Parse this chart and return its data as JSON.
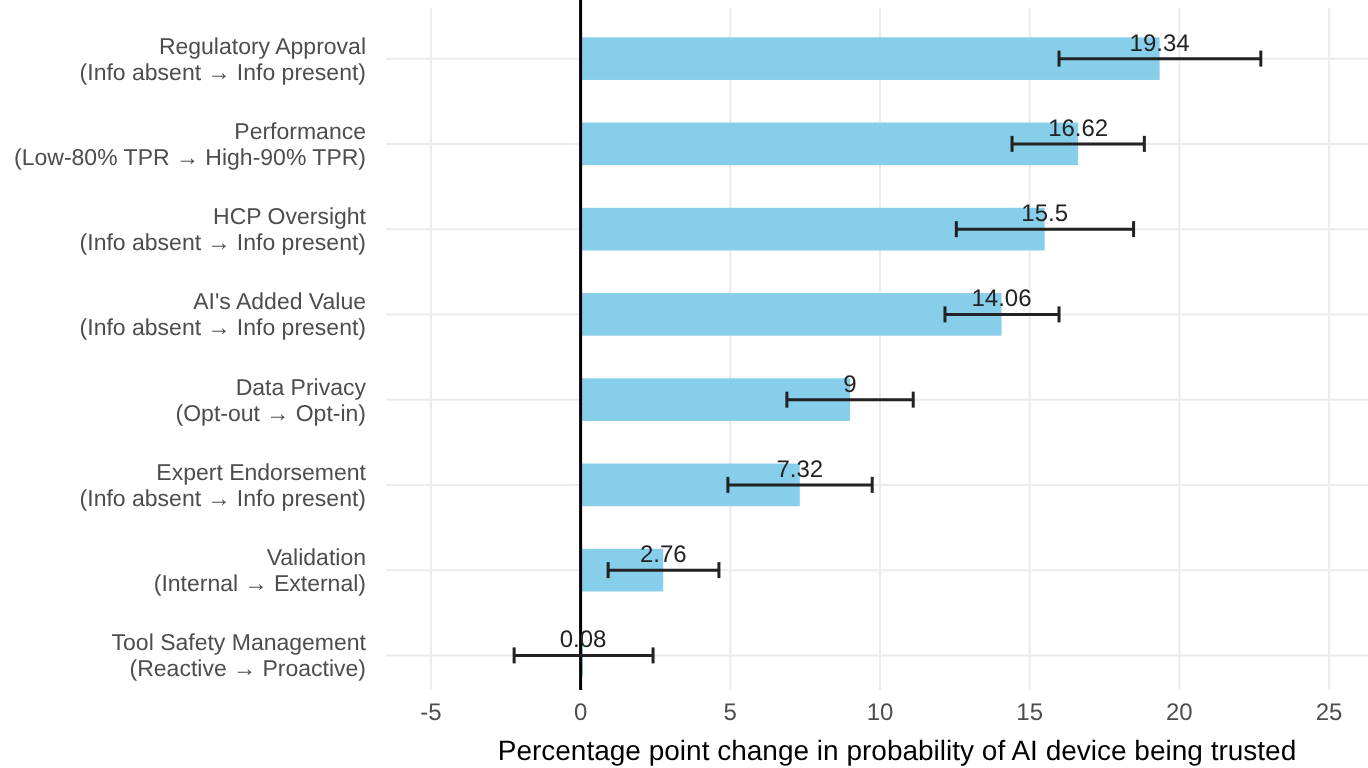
{
  "chart_data": {
    "type": "bar",
    "orientation": "horizontal",
    "xlabel": "Percentage point change in probability of AI device being trusted",
    "categories": [
      "Regulatory Approval\n(Info absent → Info present)",
      "Performance\n(Low-80% TPR → High-90% TPR)",
      "HCP Oversight\n(Info absent → Info present)",
      "AI's Added Value\n(Info absent → Info present)",
      "Data Privacy\n(Opt-out → Opt-in)",
      "Expert Endorsement\n(Info absent → Info present)",
      "Validation\n(Internal → External)",
      "Tool Safety Management\n(Reactive → Proactive)"
    ],
    "values": [
      19.34,
      16.62,
      15.5,
      14.06,
      9,
      7.32,
      2.76,
      0.08
    ],
    "errors": [
      [
        15.98,
        22.72
      ],
      [
        14.41,
        18.83
      ],
      [
        12.55,
        18.47
      ],
      [
        12.17,
        15.98
      ],
      [
        6.89,
        11.11
      ],
      [
        4.92,
        9.74
      ],
      [
        0.92,
        4.62
      ],
      [
        -2.22,
        2.42
      ]
    ],
    "color": "#87ceeb",
    "data_labels": true,
    "grid": true,
    "xlim": [
      -6.5,
      26.3
    ],
    "xticks": [
      -5,
      0,
      5,
      10,
      15,
      20,
      25
    ],
    "ref_lines": [
      {
        "axis": "x",
        "value": 0,
        "color": "#000000"
      }
    ]
  }
}
